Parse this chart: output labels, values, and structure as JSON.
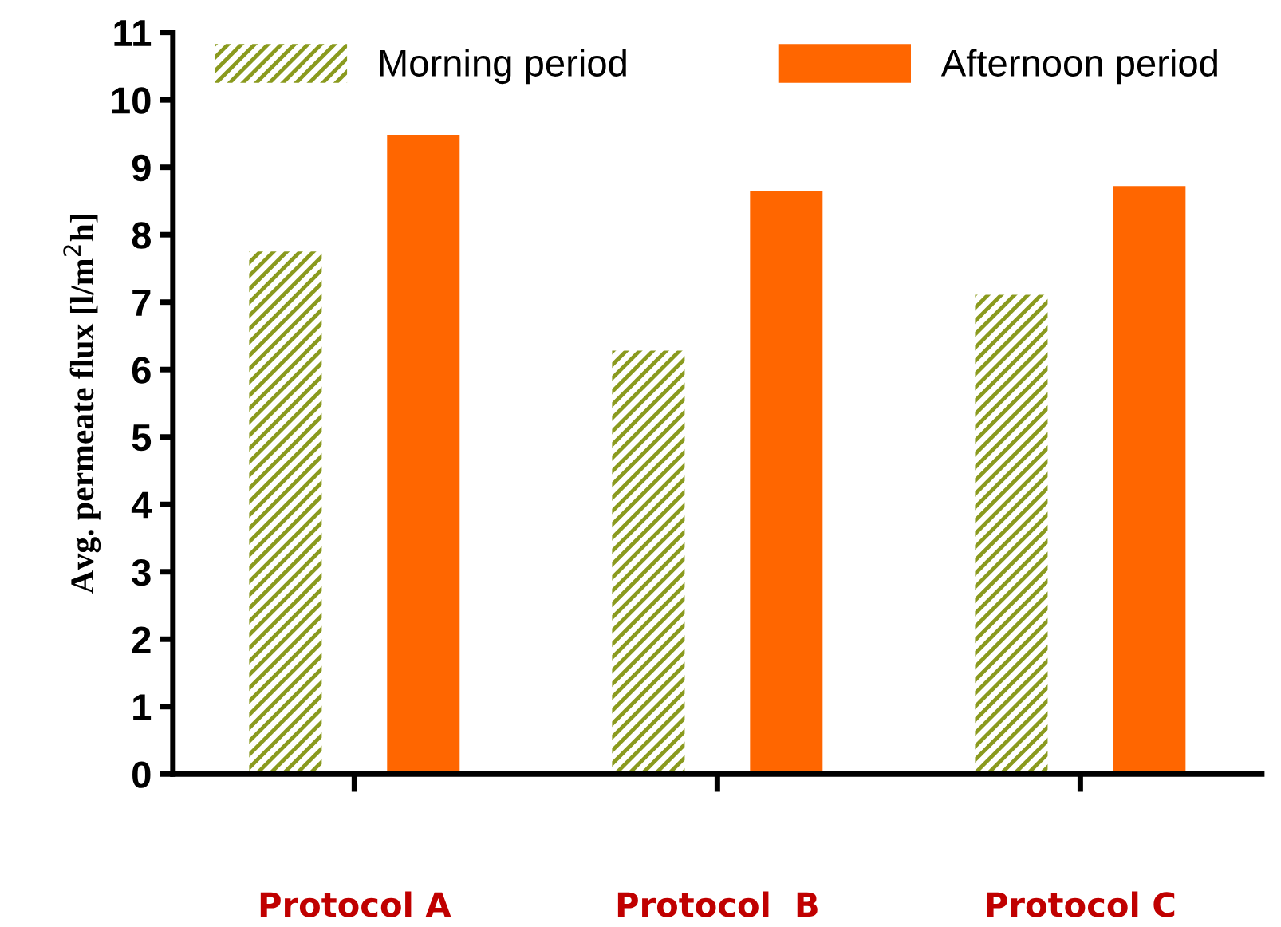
{
  "chart_data": {
    "type": "bar",
    "ylabel": "Avg. permeate flux [l/m$^{2}$h]",
    "categories": [
      "Protocol A",
      "Protocol  B",
      "Protocol C"
    ],
    "series": [
      {
        "name": "Morning period",
        "color": "#8a9a1e",
        "values": [
          7.75,
          6.28,
          7.11
        ]
      },
      {
        "name": "Afternoon period",
        "color": "#ff6600",
        "values": [
          9.48,
          8.65,
          8.72
        ]
      }
    ],
    "ylim": [
      0,
      11
    ],
    "yticks": [
      0,
      1,
      2,
      3,
      4,
      5,
      6,
      7,
      8,
      9,
      10,
      11
    ],
    "grid": false,
    "legend": "top"
  }
}
